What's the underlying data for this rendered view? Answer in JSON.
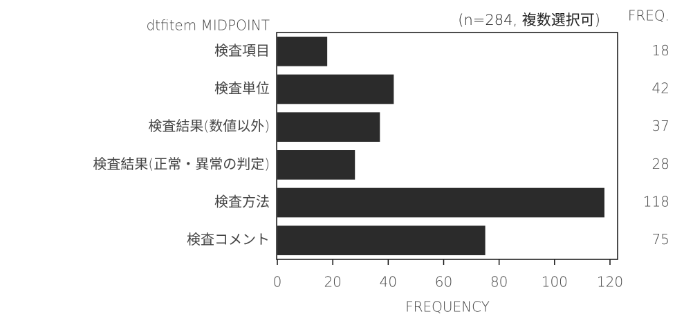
{
  "chart_data": {
    "type": "bar",
    "subtitle": "(n=284, 複数選択可)",
    "y_label": "dtfitem MIDPOINT",
    "value_header": "FREQ.",
    "x_label": "FREQUENCY",
    "categories": [
      "検査項目",
      "検査単位",
      "検査結果(数値以外)",
      "検査結果(正常・異常の判定)",
      "検査方法",
      "検査コメント"
    ],
    "values": [
      18,
      42,
      37,
      28,
      118,
      75
    ],
    "color": "#2b2b2b",
    "xlim": [
      0,
      120
    ],
    "xticks": [
      0,
      20,
      40,
      60,
      80,
      100,
      120
    ]
  }
}
